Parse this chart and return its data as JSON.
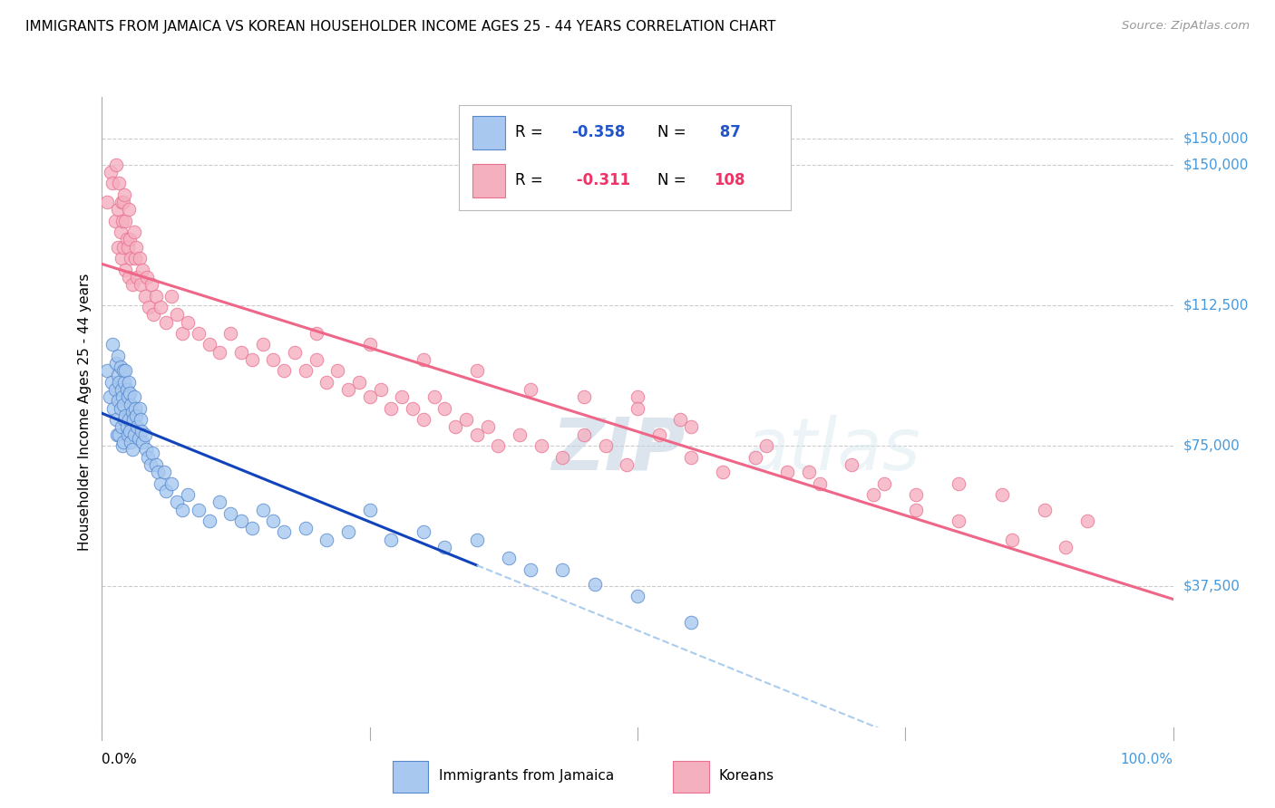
{
  "title": "IMMIGRANTS FROM JAMAICA VS KOREAN HOUSEHOLDER INCOME AGES 25 - 44 YEARS CORRELATION CHART",
  "source": "Source: ZipAtlas.com",
  "ylabel": "Householder Income Ages 25 - 44 years",
  "ytick_labels": [
    "$37,500",
    "$75,000",
    "$112,500",
    "$150,000"
  ],
  "ytick_values": [
    37500,
    75000,
    112500,
    150000
  ],
  "ymin": 0,
  "ymax": 168000,
  "xmin": 0.0,
  "xmax": 1.0,
  "watermark_zip": "ZIP",
  "watermark_atlas": "atlas",
  "jamaica_color": "#a8c8f0",
  "korean_color": "#f5b0c0",
  "jamaica_edge_color": "#5588cc",
  "korean_edge_color": "#e87090",
  "jamaica_line_color": "#1144bb",
  "korean_line_color": "#ee6688",
  "dashed_line_color": "#aaccee",
  "jamaica_R": "-0.358",
  "jamaica_N": "87",
  "korean_R": "-0.311",
  "korean_N": "108",
  "jamaica_scatter_x": [
    0.005,
    0.007,
    0.009,
    0.01,
    0.011,
    0.012,
    0.013,
    0.013,
    0.014,
    0.015,
    0.015,
    0.015,
    0.016,
    0.016,
    0.017,
    0.017,
    0.018,
    0.018,
    0.019,
    0.019,
    0.02,
    0.02,
    0.02,
    0.021,
    0.021,
    0.022,
    0.022,
    0.023,
    0.023,
    0.024,
    0.024,
    0.025,
    0.025,
    0.026,
    0.026,
    0.027,
    0.027,
    0.028,
    0.028,
    0.029,
    0.03,
    0.03,
    0.031,
    0.032,
    0.033,
    0.034,
    0.035,
    0.036,
    0.037,
    0.038,
    0.04,
    0.041,
    0.043,
    0.045,
    0.047,
    0.05,
    0.052,
    0.055,
    0.058,
    0.06,
    0.065,
    0.07,
    0.075,
    0.08,
    0.09,
    0.1,
    0.11,
    0.12,
    0.13,
    0.14,
    0.15,
    0.16,
    0.17,
    0.19,
    0.21,
    0.23,
    0.25,
    0.27,
    0.3,
    0.32,
    0.35,
    0.38,
    0.4,
    0.43,
    0.46,
    0.5,
    0.55
  ],
  "jamaica_scatter_y": [
    95000,
    88000,
    92000,
    102000,
    85000,
    90000,
    97000,
    82000,
    78000,
    99000,
    94000,
    87000,
    92000,
    78000,
    96000,
    85000,
    90000,
    80000,
    88000,
    75000,
    95000,
    86000,
    76000,
    92000,
    82000,
    95000,
    83000,
    90000,
    80000,
    88000,
    78000,
    92000,
    82000,
    89000,
    79000,
    86000,
    76000,
    84000,
    74000,
    82000,
    88000,
    78000,
    85000,
    83000,
    80000,
    77000,
    85000,
    82000,
    79000,
    76000,
    78000,
    74000,
    72000,
    70000,
    73000,
    70000,
    68000,
    65000,
    68000,
    63000,
    65000,
    60000,
    58000,
    62000,
    58000,
    55000,
    60000,
    57000,
    55000,
    53000,
    58000,
    55000,
    52000,
    53000,
    50000,
    52000,
    58000,
    50000,
    52000,
    48000,
    50000,
    45000,
    42000,
    42000,
    38000,
    35000,
    28000
  ],
  "korean_scatter_x": [
    0.005,
    0.008,
    0.01,
    0.012,
    0.013,
    0.015,
    0.015,
    0.016,
    0.017,
    0.018,
    0.018,
    0.019,
    0.02,
    0.02,
    0.021,
    0.022,
    0.022,
    0.023,
    0.024,
    0.025,
    0.025,
    0.026,
    0.027,
    0.028,
    0.03,
    0.031,
    0.032,
    0.033,
    0.035,
    0.036,
    0.038,
    0.04,
    0.042,
    0.044,
    0.046,
    0.048,
    0.05,
    0.055,
    0.06,
    0.065,
    0.07,
    0.075,
    0.08,
    0.09,
    0.1,
    0.11,
    0.12,
    0.13,
    0.14,
    0.15,
    0.16,
    0.17,
    0.18,
    0.19,
    0.2,
    0.21,
    0.22,
    0.23,
    0.24,
    0.25,
    0.26,
    0.27,
    0.28,
    0.29,
    0.3,
    0.31,
    0.32,
    0.33,
    0.34,
    0.35,
    0.36,
    0.37,
    0.39,
    0.41,
    0.43,
    0.45,
    0.47,
    0.49,
    0.52,
    0.55,
    0.58,
    0.61,
    0.64,
    0.67,
    0.7,
    0.73,
    0.76,
    0.8,
    0.84,
    0.88,
    0.92,
    0.62,
    0.66,
    0.5,
    0.54,
    0.72,
    0.76,
    0.8,
    0.85,
    0.9,
    0.2,
    0.25,
    0.3,
    0.35,
    0.4,
    0.45,
    0.5,
    0.55
  ],
  "korean_scatter_y": [
    140000,
    148000,
    145000,
    135000,
    150000,
    138000,
    128000,
    145000,
    132000,
    140000,
    125000,
    135000,
    140000,
    128000,
    142000,
    135000,
    122000,
    130000,
    128000,
    138000,
    120000,
    130000,
    125000,
    118000,
    132000,
    125000,
    128000,
    120000,
    125000,
    118000,
    122000,
    115000,
    120000,
    112000,
    118000,
    110000,
    115000,
    112000,
    108000,
    115000,
    110000,
    105000,
    108000,
    105000,
    102000,
    100000,
    105000,
    100000,
    98000,
    102000,
    98000,
    95000,
    100000,
    95000,
    98000,
    92000,
    95000,
    90000,
    92000,
    88000,
    90000,
    85000,
    88000,
    85000,
    82000,
    88000,
    85000,
    80000,
    82000,
    78000,
    80000,
    75000,
    78000,
    75000,
    72000,
    78000,
    75000,
    70000,
    78000,
    72000,
    68000,
    72000,
    68000,
    65000,
    70000,
    65000,
    62000,
    65000,
    62000,
    58000,
    55000,
    75000,
    68000,
    88000,
    82000,
    62000,
    58000,
    55000,
    50000,
    48000,
    105000,
    102000,
    98000,
    95000,
    90000,
    88000,
    85000,
    80000
  ]
}
